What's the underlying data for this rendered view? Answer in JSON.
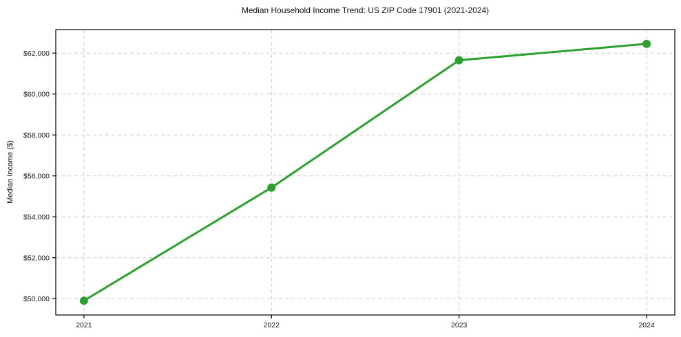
{
  "chart_data": {
    "type": "line",
    "title": "Median Household Income Trend: US ZIP Code 17901 (2021-2024)",
    "xlabel": "",
    "ylabel": "Median Income ($)",
    "x": [
      2021,
      2022,
      2023,
      2024
    ],
    "xtick_labels": [
      "2021",
      "2022",
      "2023",
      "2024"
    ],
    "series": [
      {
        "name": "Median Household Income",
        "values": [
          49900,
          55430,
          61650,
          62450
        ],
        "color": "#2ca02c",
        "marker": "circle",
        "line_width": 3,
        "marker_radius": 6
      }
    ],
    "yticks": [
      50000,
      52000,
      54000,
      56000,
      58000,
      60000,
      62000
    ],
    "ytick_labels": [
      "$50,000",
      "$52,000",
      "$54,000",
      "$56,000",
      "$58,000",
      "$60,000",
      "$62,000"
    ],
    "xlim": [
      2020.85,
      2024.15
    ],
    "ylim": [
      49200,
      63150
    ],
    "grid": true,
    "grid_style": "dashed",
    "legend": false,
    "colors": {
      "grid": "#cccccc",
      "axis": "#000000",
      "text": "#111111",
      "background": "#ffffff"
    }
  }
}
